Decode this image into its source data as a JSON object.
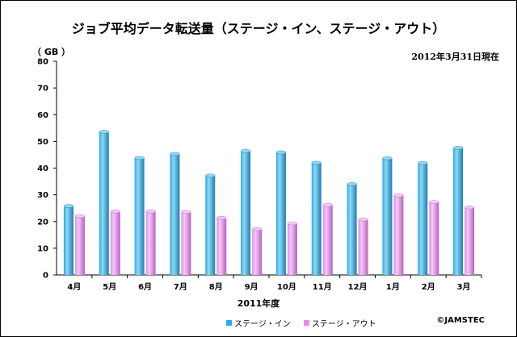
{
  "chart_data": {
    "type": "bar",
    "title": "ジョブ平均データ転送量（ステージ・イン、ステージ・アウト）",
    "as_of": "2012年3月31日現在",
    "unit_label": "（ GB ）",
    "xlabel": "2011年度",
    "ylim": [
      0,
      80
    ],
    "yticks": [
      "0",
      "10",
      "20",
      "30",
      "40",
      "50",
      "60",
      "70",
      "80"
    ],
    "grid": false,
    "legend_position": "bottom",
    "categories": [
      "4月",
      "5月",
      "6月",
      "7月",
      "8月",
      "9月",
      "10月",
      "11月",
      "12月",
      "1月",
      "2月",
      "3月"
    ],
    "series": [
      {
        "name": "ステージ・イン",
        "color": "#29ABE2",
        "values": [
          25.8,
          53.6,
          43.8,
          45.3,
          37.2,
          46.4,
          45.9,
          42.0,
          34.0,
          43.7,
          41.9,
          47.6
        ]
      },
      {
        "name": "ステージ・アウト",
        "color": "#E08FE8",
        "values": [
          22.0,
          23.8,
          23.8,
          23.6,
          21.4,
          17.2,
          19.3,
          26.2,
          20.8,
          29.8,
          27.3,
          25.3
        ]
      }
    ]
  },
  "credit": "©JAMSTEC"
}
